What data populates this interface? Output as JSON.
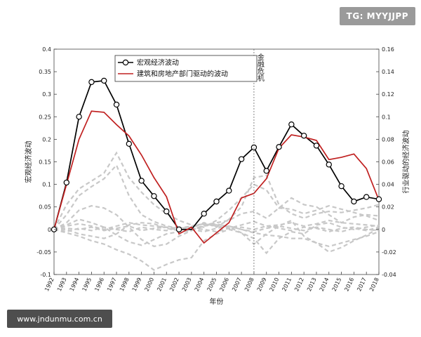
{
  "watermarks": {
    "top_right": "TG: MYYJJPP",
    "bottom_left": "www.jndunmu.com.cn"
  },
  "chart_data": {
    "type": "line",
    "xlabel": "年份",
    "ylabel_left": "宏观经济波动",
    "ylabel_right": "行业驱动的经济波动",
    "ylim_left": [
      -0.1,
      0.4
    ],
    "ylim_right": [
      -0.04,
      0.16
    ],
    "yticks_left": [
      "-0.1",
      "-0.05",
      "0",
      "0.05",
      "0.1",
      "0.15",
      "0.2",
      "0.25",
      "0.3",
      "0.35",
      "0.4"
    ],
    "yticks_right": [
      "-0.04",
      "-0.02",
      "0",
      "0.02",
      "0.04",
      "0.06",
      "0.08",
      "0.1",
      "0.12",
      "0.14",
      "0.16"
    ],
    "categories": [
      "1992",
      "1993",
      "1994",
      "1995",
      "1996",
      "1997",
      "1998",
      "1999",
      "2000",
      "2001",
      "2002",
      "2003",
      "2004",
      "2005",
      "2006",
      "2007",
      "2008",
      "2009",
      "2010",
      "2011",
      "2012",
      "2013",
      "2014",
      "2015",
      "2016",
      "2017",
      "2018"
    ],
    "annotation": {
      "text": "金融危机",
      "x": "2008"
    },
    "legend": [
      {
        "label": "宏观经济波动",
        "color": "#000000",
        "marker": "circle"
      },
      {
        "label": "建筑和房地产部门驱动的波动",
        "color": "#c02020",
        "marker": "none"
      }
    ],
    "series": [
      {
        "name": "宏观经济波动",
        "axis": "left",
        "color": "#000000",
        "values": [
          0.0,
          0.104,
          0.25,
          0.327,
          0.33,
          0.277,
          0.19,
          0.108,
          0.074,
          0.04,
          0.0,
          0.0,
          0.035,
          0.062,
          0.086,
          0.156,
          0.182,
          0.13,
          0.183,
          0.233,
          0.208,
          0.186,
          0.144,
          0.096,
          0.062,
          0.072,
          0.067
        ]
      },
      {
        "name": "建筑和房地产部门驱动的波动",
        "axis": "right",
        "color": "#c02020",
        "values": [
          0.0,
          0.04,
          0.08,
          0.105,
          0.104,
          0.093,
          0.083,
          0.066,
          0.046,
          0.029,
          -0.004,
          0.002,
          -0.012,
          -0.003,
          0.006,
          0.028,
          0.032,
          0.045,
          0.072,
          0.084,
          0.082,
          0.079,
          0.062,
          0.064,
          0.067,
          0.054,
          0.026
        ]
      },
      {
        "axis": "right",
        "color": "#c8c8c8",
        "dashed": true,
        "values": [
          0.0,
          0.013,
          0.03,
          0.038,
          0.045,
          0.057,
          0.03,
          0.013,
          0.007,
          0.003,
          0.001,
          0.002,
          0.006,
          0.002,
          0.009,
          0.02,
          0.046,
          0.048,
          0.022,
          0.014,
          0.01,
          0.014,
          0.016,
          0.015,
          0.017,
          0.019,
          0.022
        ]
      },
      {
        "axis": "right",
        "color": "#c8c8c8",
        "dashed": true,
        "values": [
          0.0,
          0.022,
          0.036,
          0.043,
          0.05,
          0.068,
          0.046,
          0.033,
          0.022,
          0.014,
          0.008,
          0.004,
          0.002,
          0.008,
          0.017,
          0.028,
          0.04,
          0.035,
          0.019,
          0.018,
          0.014,
          0.017,
          0.021,
          0.018,
          0.015,
          0.012,
          0.008
        ]
      },
      {
        "axis": "right",
        "color": "#c8c8c8",
        "dashed": true,
        "values": [
          0.0,
          0.006,
          0.017,
          0.021,
          0.019,
          0.013,
          0.002,
          -0.009,
          -0.015,
          -0.013,
          -0.006,
          -0.001,
          0.004,
          0.006,
          0.008,
          0.014,
          0.016,
          0.01,
          0.019,
          0.028,
          0.022,
          0.02,
          0.013,
          0.006,
          0.011,
          0.013,
          0.012
        ]
      },
      {
        "axis": "right",
        "color": "#c8c8c8",
        "dashed": true,
        "values": [
          0.0,
          -0.003,
          -0.006,
          -0.01,
          -0.013,
          -0.018,
          -0.022,
          -0.028,
          -0.036,
          -0.031,
          -0.027,
          -0.025,
          -0.01,
          -0.004,
          0.0,
          -0.003,
          -0.013,
          -0.004,
          0.003,
          0.008,
          -0.006,
          -0.012,
          -0.02,
          -0.016,
          -0.01,
          -0.005,
          0.001
        ]
      },
      {
        "axis": "right",
        "color": "#c8c8c8",
        "dashed": true,
        "values": [
          0.0,
          0.004,
          0.009,
          0.006,
          0.002,
          -0.005,
          -0.011,
          -0.014,
          -0.009,
          -0.004,
          -0.002,
          -0.001,
          0.003,
          0.005,
          0.002,
          -0.003,
          -0.008,
          -0.021,
          -0.008,
          -0.002,
          -0.004,
          0.004,
          0.006,
          0.002,
          0.0,
          0.002,
          0.004
        ]
      },
      {
        "axis": "right",
        "color": "#c8c8c8",
        "dashed": true,
        "values": [
          0.0,
          0.0,
          -0.004,
          -0.006,
          -0.008,
          -0.004,
          0.004,
          0.006,
          0.005,
          0.001,
          -0.001,
          0.002,
          0.005,
          0.004,
          0.003,
          0.0,
          -0.003,
          -0.005,
          -0.006,
          -0.008,
          -0.008,
          -0.012,
          -0.015,
          -0.012,
          -0.009,
          -0.006,
          -0.002
        ]
      },
      {
        "axis": "right",
        "color": "#c8c8c8",
        "dashed": true,
        "values": [
          0.0,
          0.003,
          0.005,
          0.003,
          0.0,
          0.003,
          0.006,
          0.004,
          0.003,
          0.002,
          0.001,
          0.003,
          0.005,
          0.003,
          0.001,
          0.004,
          0.007,
          0.003,
          0.004,
          0.006,
          0.003,
          0.005,
          0.008,
          0.006,
          0.005,
          0.004,
          0.003
        ]
      },
      {
        "axis": "right",
        "color": "#c8c8c8",
        "dashed": true,
        "values": [
          0.0,
          -0.002,
          0.001,
          -0.001,
          0.002,
          0.0,
          -0.002,
          0.002,
          0.0,
          -0.001,
          0.002,
          0.0,
          -0.002,
          0.001,
          0.003,
          0.0,
          -0.002,
          0.001,
          0.003,
          0.001,
          -0.001,
          0.002,
          0.0,
          -0.002,
          0.001,
          -0.001,
          0.002
        ]
      },
      {
        "axis": "right",
        "color": "#c8c8c8",
        "dashed": true,
        "values": [
          0.0,
          0.001,
          0.0,
          0.002,
          -0.001,
          0.001,
          0.003,
          -0.001,
          0.001,
          0.002,
          -0.001,
          0.001,
          0.0,
          -0.002,
          0.001,
          0.002,
          0.0,
          0.003,
          0.001,
          -0.001,
          0.002,
          0.001,
          -0.002,
          0.001,
          0.002,
          0.0,
          -0.001
        ]
      }
    ]
  }
}
